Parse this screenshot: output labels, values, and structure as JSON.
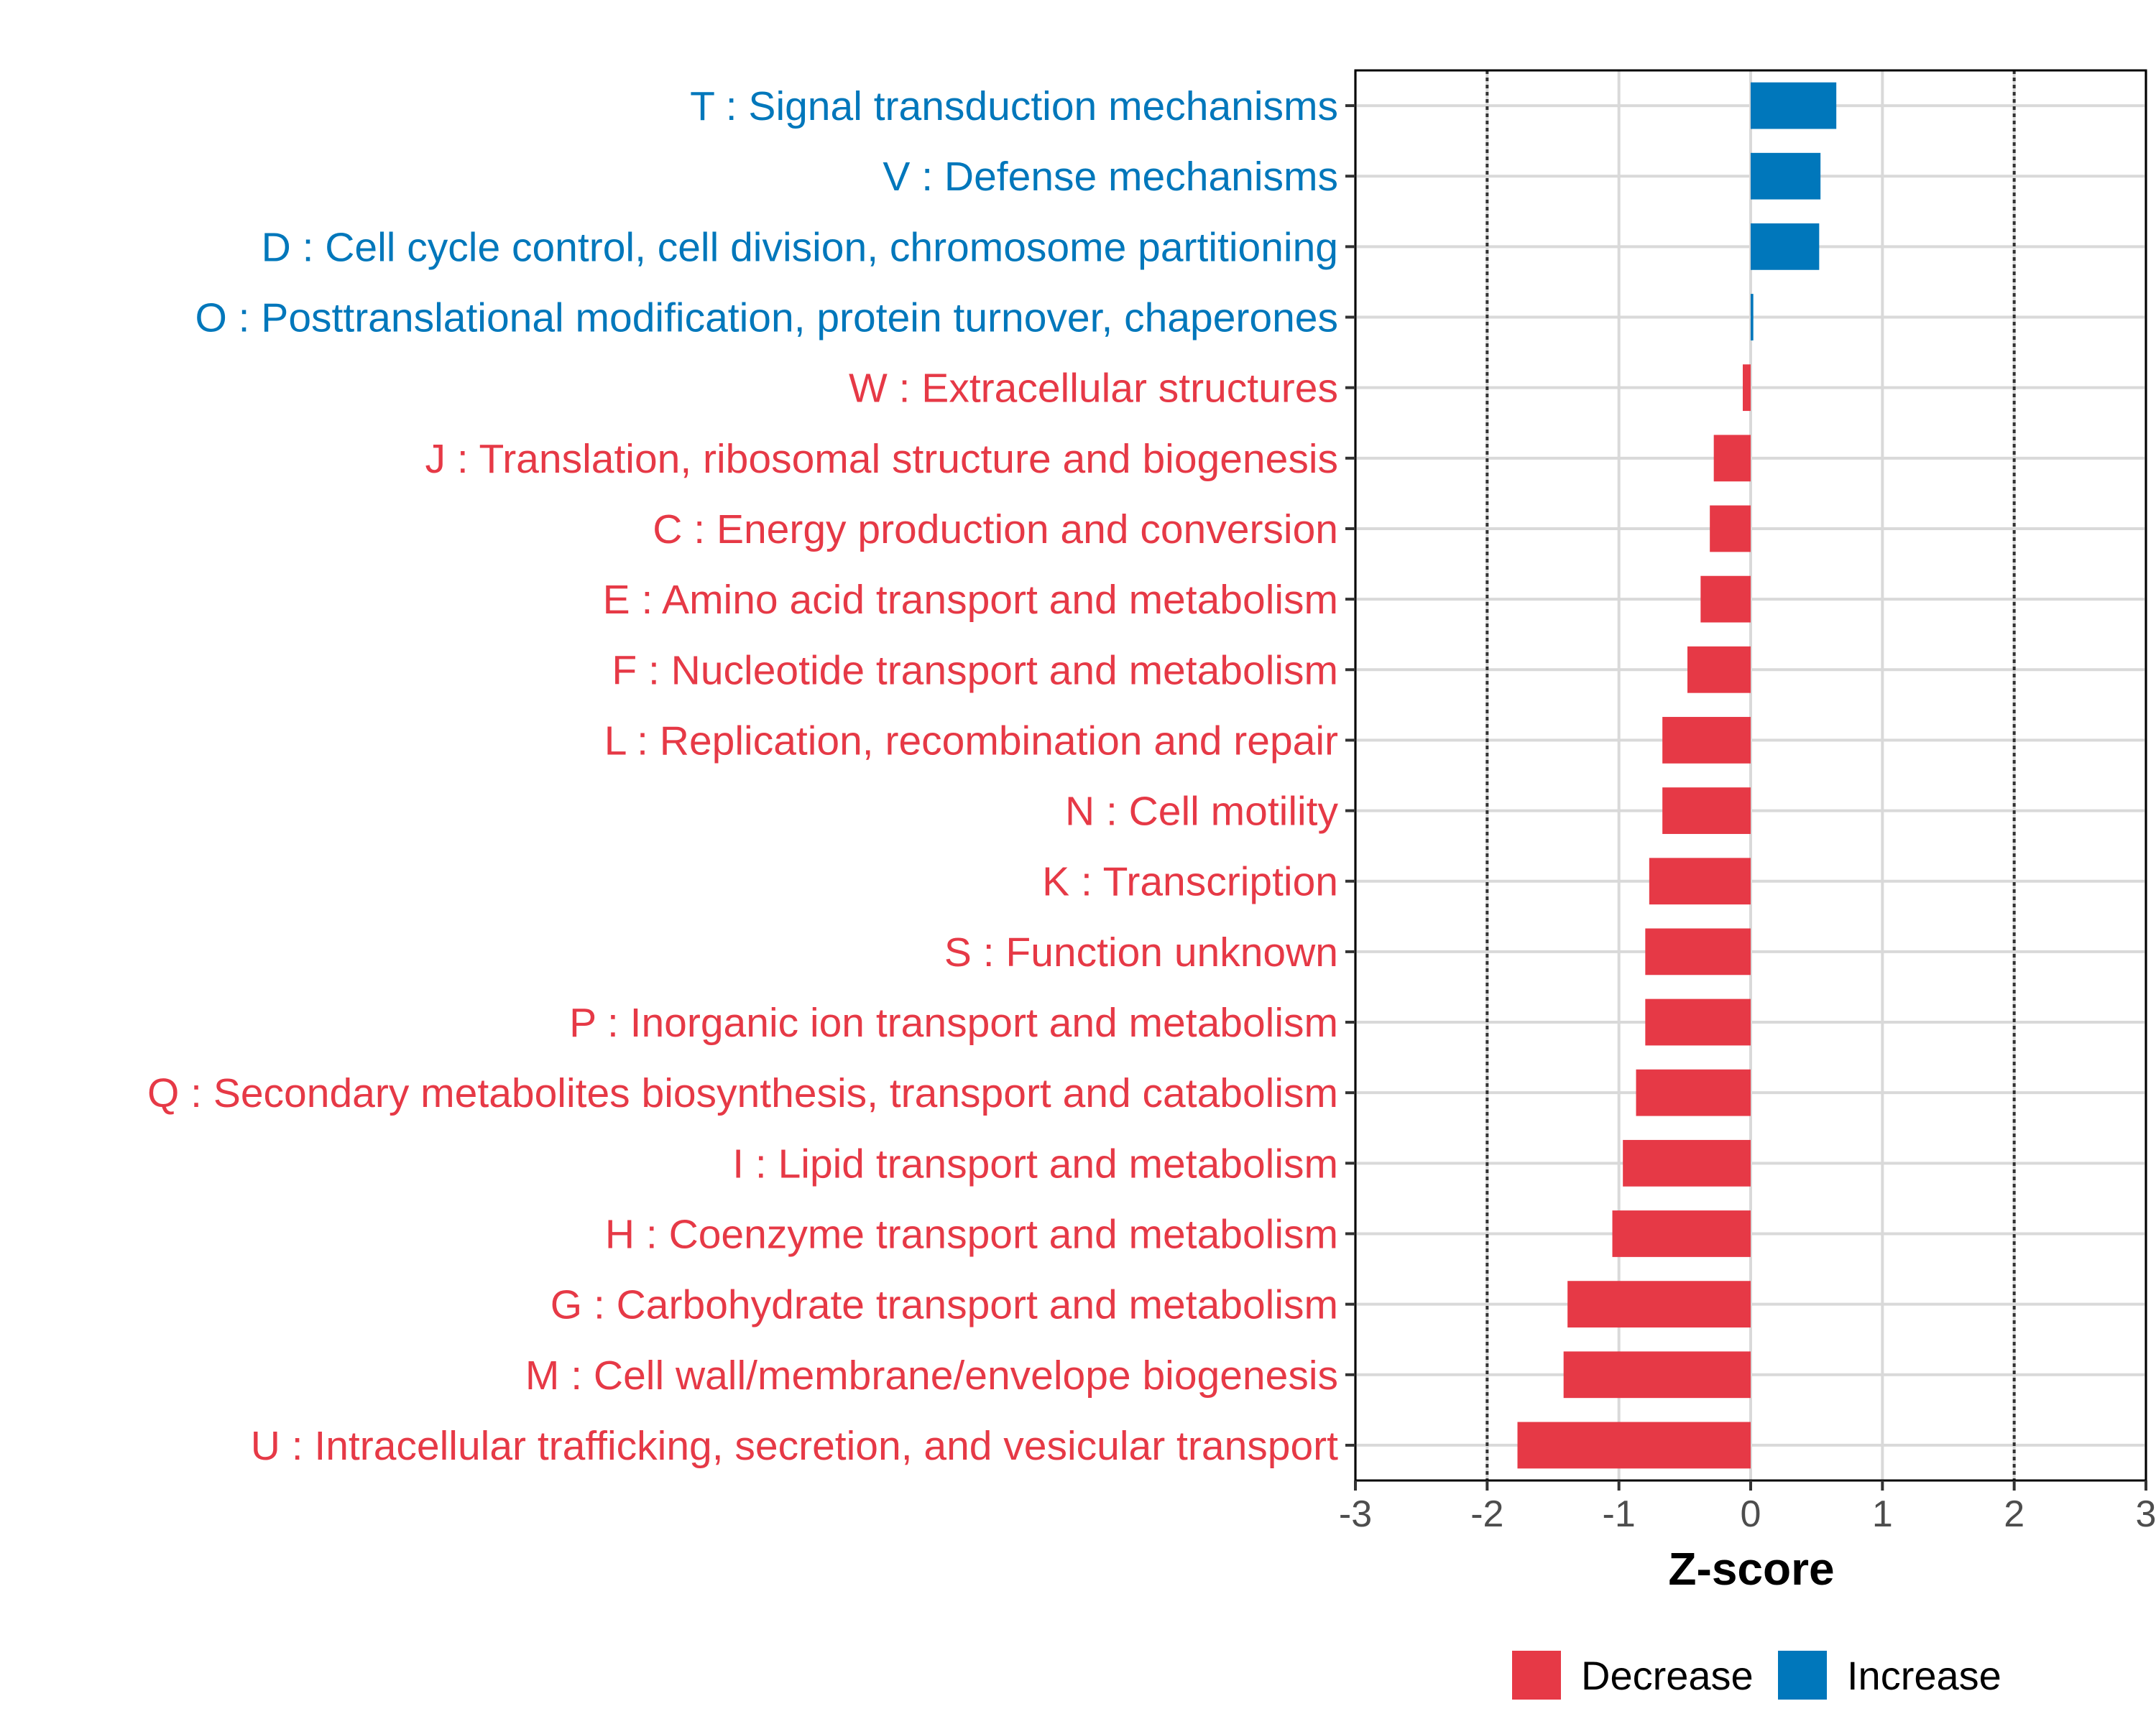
{
  "chart_data": {
    "type": "bar",
    "orientation": "horizontal",
    "xlabel": "Z-score",
    "xlim": [
      -3,
      3
    ],
    "xticks": [
      "-3",
      "-2",
      "-1",
      "0",
      "1",
      "2",
      "3"
    ],
    "reference_lines": [
      -2,
      2
    ],
    "colors": {
      "Decrease": "#e63946",
      "Increase": "#0077bb"
    },
    "legend": {
      "position": "bottom-right",
      "entries": [
        {
          "name": "Decrease",
          "color": "#e63946"
        },
        {
          "name": "Increase",
          "color": "#0077bb"
        }
      ]
    },
    "categories": [
      {
        "label": "T : Signal transduction mechanisms",
        "value": 0.65,
        "group": "Increase"
      },
      {
        "label": "V : Defense mechanisms",
        "value": 0.53,
        "group": "Increase"
      },
      {
        "label": "D : Cell cycle control, cell division, chromosome partitioning",
        "value": 0.52,
        "group": "Increase"
      },
      {
        "label": "O : Posttranslational modification, protein turnover, chaperones",
        "value": 0.02,
        "group": "Increase"
      },
      {
        "label": "W : Extracellular structures",
        "value": -0.06,
        "group": "Decrease"
      },
      {
        "label": "J : Translation, ribosomal structure and biogenesis",
        "value": -0.28,
        "group": "Decrease"
      },
      {
        "label": "C : Energy production and conversion",
        "value": -0.31,
        "group": "Decrease"
      },
      {
        "label": "E : Amino acid transport and metabolism",
        "value": -0.38,
        "group": "Decrease"
      },
      {
        "label": "F : Nucleotide transport and metabolism",
        "value": -0.48,
        "group": "Decrease"
      },
      {
        "label": "L : Replication, recombination and repair",
        "value": -0.67,
        "group": "Decrease"
      },
      {
        "label": "N : Cell motility",
        "value": -0.67,
        "group": "Decrease"
      },
      {
        "label": "K : Transcription",
        "value": -0.77,
        "group": "Decrease"
      },
      {
        "label": "S : Function unknown",
        "value": -0.8,
        "group": "Decrease"
      },
      {
        "label": "P : Inorganic ion transport and metabolism",
        "value": -0.8,
        "group": "Decrease"
      },
      {
        "label": "Q : Secondary metabolites biosynthesis, transport and catabolism",
        "value": -0.87,
        "group": "Decrease"
      },
      {
        "label": "I : Lipid transport and metabolism",
        "value": -0.97,
        "group": "Decrease"
      },
      {
        "label": "H : Coenzyme transport and metabolism",
        "value": -1.05,
        "group": "Decrease"
      },
      {
        "label": "G : Carbohydrate transport and metabolism",
        "value": -1.39,
        "group": "Decrease"
      },
      {
        "label": "M : Cell wall/membrane/envelope biogenesis",
        "value": -1.42,
        "group": "Decrease"
      },
      {
        "label": "U : Intracellular trafficking, secretion, and vesicular transport",
        "value": -1.77,
        "group": "Decrease"
      }
    ]
  }
}
